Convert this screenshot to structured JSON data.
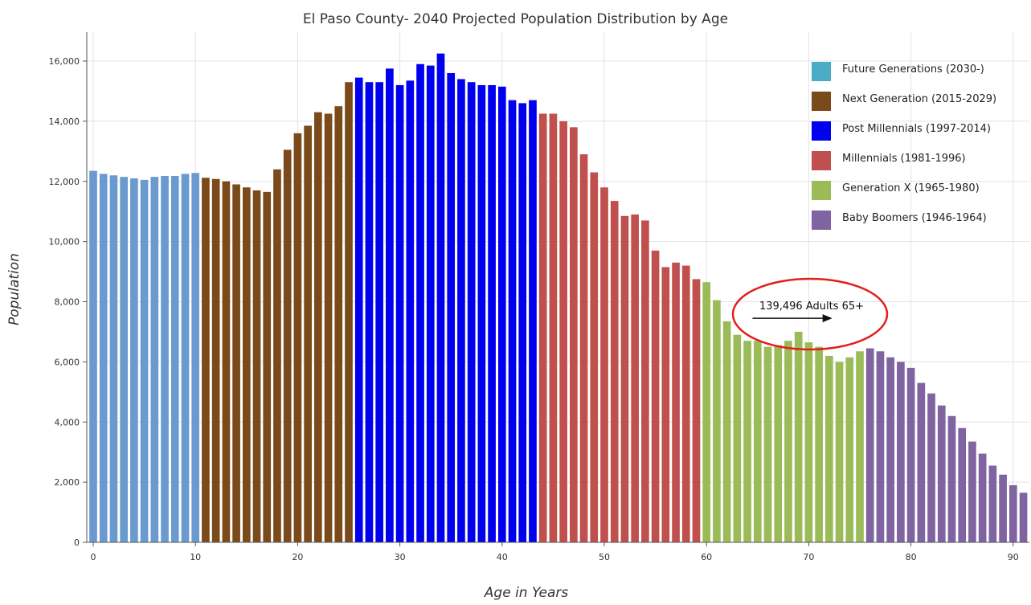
{
  "chart_data": {
    "type": "bar",
    "title": "El Paso County- 2040 Projected Population Distribution by Age",
    "xlabel": "Age in Years",
    "ylabel": "Population",
    "xlim": [
      0,
      91
    ],
    "ylim": [
      0,
      16500
    ],
    "x_ticks": [
      0,
      10,
      20,
      30,
      40,
      50,
      60,
      70,
      80,
      90
    ],
    "x_tick_labels": [
      "0",
      "10",
      "20",
      "30",
      "40",
      "50",
      "60",
      "70",
      "80",
      "90"
    ],
    "y_ticks": [
      0,
      2000,
      4000,
      6000,
      8000,
      10000,
      12000,
      14000,
      16000
    ],
    "y_tick_labels": [
      "0",
      "2,000",
      "4,000",
      "6,000",
      "8,000",
      "10,000",
      "12,000",
      "14,000",
      "16,000"
    ],
    "grid": true,
    "legend_position": "top-right",
    "legend": [
      {
        "name": "Future Generations (2030-)",
        "color": "#4bacc6"
      },
      {
        "name": "Next Generation (2015-2029)",
        "color": "#7a4a1b"
      },
      {
        "name": "Post Millennials (1997-2014)",
        "color": "#0000ee"
      },
      {
        "name": "Millennials (1981-1996)",
        "color": "#c0504d"
      },
      {
        "name": "Generation X (1965-1980)",
        "color": "#9bbb59"
      },
      {
        "name": "Baby Boomers (1946-1964)",
        "color": "#8064a2"
      }
    ],
    "series": [
      {
        "color": "#6b9acf",
        "x": [
          0,
          1,
          2,
          3,
          4,
          5,
          6,
          7,
          8,
          9,
          10
        ],
        "values": [
          12350,
          12250,
          12200,
          12150,
          12100,
          12050,
          12150,
          12180,
          12180,
          12250,
          12280
        ]
      },
      {
        "color": "#7a4a1b",
        "x": [
          11,
          12,
          13,
          14,
          15,
          16,
          17,
          18,
          19,
          20,
          21,
          22,
          23,
          24,
          25
        ],
        "values": [
          12120,
          12080,
          12000,
          11900,
          11800,
          11700,
          11650,
          12400,
          13050,
          13600,
          13850,
          14300,
          14250,
          14500,
          15300
        ]
      },
      {
        "color": "#0000ee",
        "x": [
          26,
          27,
          28,
          29,
          30,
          31,
          32,
          33,
          34,
          35,
          36,
          37,
          38,
          39,
          40,
          41,
          42,
          43
        ],
        "values": [
          15450,
          15300,
          15300,
          15750,
          15200,
          15350,
          15900,
          15850,
          16250,
          15600,
          15400,
          15300,
          15200,
          15200,
          15150,
          14700,
          14600,
          14700
        ]
      },
      {
        "color": "#c0504d",
        "x": [
          44,
          45,
          46,
          47,
          48,
          49,
          50,
          51,
          52,
          53,
          54,
          55,
          56,
          57,
          58,
          59
        ],
        "values": [
          14250,
          14250,
          14000,
          13800,
          12900,
          12300,
          11800,
          11350,
          10850,
          10900,
          10700,
          9700,
          9150,
          9300,
          9200,
          8750
        ]
      },
      {
        "color": "#9bbb59",
        "x": [
          60,
          61,
          62,
          63,
          64,
          65,
          66,
          67,
          68,
          69,
          70,
          71,
          72,
          73,
          74,
          75
        ],
        "values": [
          8650,
          8050,
          7350,
          6900,
          6700,
          6700,
          6500,
          6550,
          6700,
          7000,
          6650,
          6500,
          6200,
          6000,
          6150,
          6350
        ]
      },
      {
        "color": "#8064a2",
        "x": [
          76,
          77,
          78,
          79,
          80,
          81,
          82,
          83,
          84,
          85,
          86,
          87,
          88,
          89,
          90,
          91
        ],
        "values": [
          6450,
          6350,
          6150,
          6000,
          5800,
          5300,
          4950,
          4550,
          4200,
          3800,
          3350,
          2950,
          2550,
          2250,
          1900,
          1650
        ]
      }
    ],
    "annotation": {
      "text": "139,496 Adults 65+",
      "arrow_from_age": 64.5,
      "arrow_to_age": 72.3,
      "arrow_level": 7450,
      "ellipse_color": "#e0201b"
    }
  }
}
